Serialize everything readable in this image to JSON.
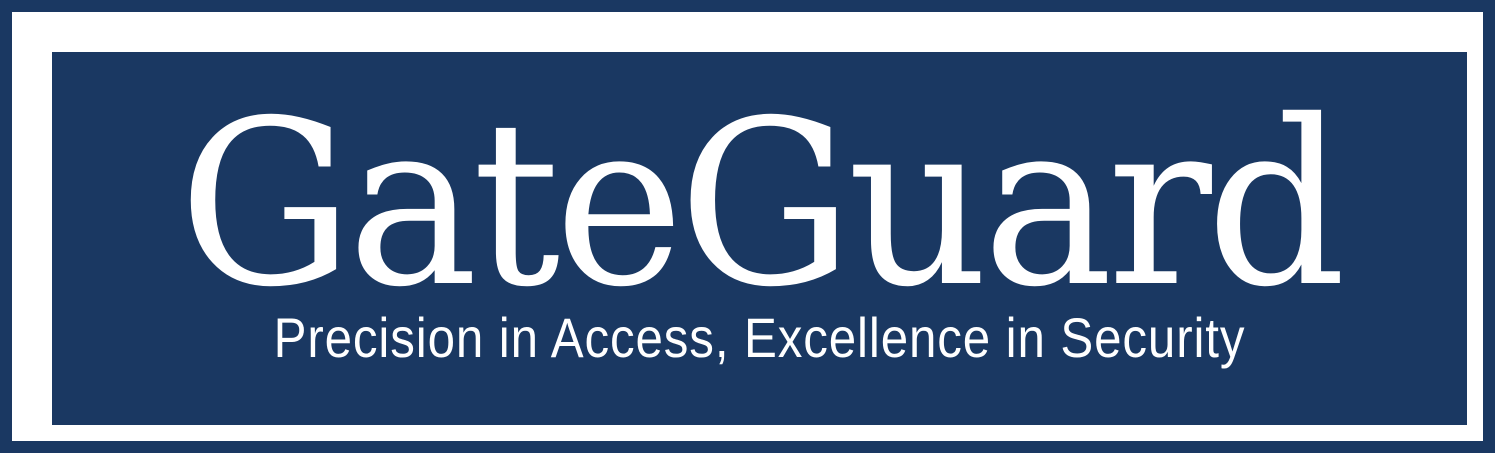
{
  "logo": {
    "brand_name": "GateGuard",
    "tagline": "Precision in Access, Excellence in Security"
  },
  "colors": {
    "background": "#1a3862",
    "frame": "#ffffff",
    "text": "#ffffff"
  }
}
